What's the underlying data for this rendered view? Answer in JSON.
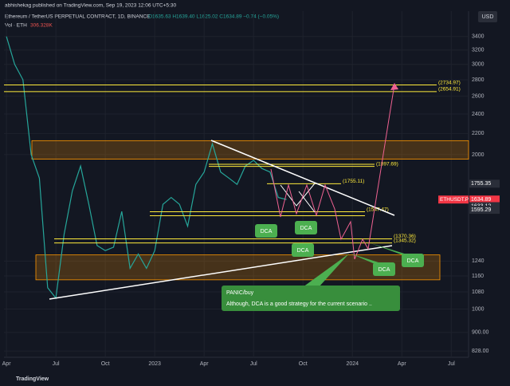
{
  "chart_data": {
    "type": "line",
    "published": "abhishekag published on TradingView.com, Sep 19, 2023 12:06 UTC+5:30",
    "title": "Ethereum / TetherUS PERPETUAL CONTRACT, 1D, BINANCE",
    "ohlc": "O1635.63 H1639.40 L1625.02 C1634.89 −0.74 (−0.05%)",
    "volume_label": "Vol · ETH",
    "volume_value": "306.328K",
    "currency": "USD",
    "brand": "TradingView",
    "log_scale": true,
    "color": "#26a69a",
    "x": [
      0,
      1,
      2,
      3,
      4,
      5,
      6,
      7,
      8,
      9,
      10,
      11,
      12,
      13,
      14,
      15,
      16,
      17,
      18,
      19,
      20,
      21,
      22,
      23,
      24,
      25,
      26,
      27,
      28,
      29,
      30,
      31,
      32,
      33,
      34
    ],
    "values": [
      3400,
      3000,
      2800,
      2000,
      1800,
      1100,
      1050,
      1400,
      1700,
      1900,
      1600,
      1330,
      1300,
      1320,
      1550,
      1200,
      1280,
      1200,
      1300,
      1600,
      1650,
      1600,
      1450,
      1750,
      1850,
      2100,
      1850,
      1800,
      1750,
      1900,
      1950,
      1880,
      1850,
      1650,
      1635
    ],
    "xlim": [
      -0.3,
      56.1
    ],
    "xticks": [
      {
        "value": 0,
        "label": "Apr"
      },
      {
        "value": 6,
        "label": "Jul"
      },
      {
        "value": 12,
        "label": "Oct"
      },
      {
        "value": 18,
        "label": "2023"
      },
      {
        "value": 24,
        "label": "Apr"
      },
      {
        "value": 30,
        "label": "Jul"
      },
      {
        "value": 36,
        "label": "Oct"
      },
      {
        "value": 42,
        "label": "2024"
      },
      {
        "value": 48,
        "label": "Apr"
      },
      {
        "value": 54,
        "label": "Jul"
      }
    ],
    "ylim": [
      805,
      3810
    ],
    "yticks": [
      3400,
      3200,
      3000,
      2800,
      2600,
      2400,
      2200,
      2000,
      1240,
      1160,
      1080,
      1000,
      {
        "value": 900,
        "label": "900.00"
      },
      {
        "value": 828,
        "label": "828.00"
      }
    ],
    "zones": [
      [
        1960,
        2130
      ],
      [
        1140,
        1275
      ]
    ],
    "levels": [
      {
        "value": 2734.97,
        "label": "(2734.97)"
      },
      {
        "value": 2654.91,
        "label": "(2654.91)"
      },
      1915,
      {
        "value": 1897.69,
        "label": "(1897.69)"
      },
      {
        "value": 1755.11,
        "label": "(1755.11)"
      },
      {
        "value": 1547.47,
        "label": "(1547.47)"
      },
      1520,
      {
        "value": 1370.36,
        "label": "(1370.36)"
      },
      {
        "value": 1345.32,
        "label": "(1345.32)"
      }
    ],
    "price_tags": [
      1755.35,
      1634.89,
      1633.12,
      1595.29
    ],
    "symbol": "ETHUSDT.P",
    "countdown": "17:23:13",
    "annotations": [
      "DCA",
      "DCA",
      "DCA",
      "DCA",
      "DCA"
    ],
    "note_title": "PANIC/buy",
    "note_text": "Although, DCA is a good strategy for the current scenario .."
  }
}
